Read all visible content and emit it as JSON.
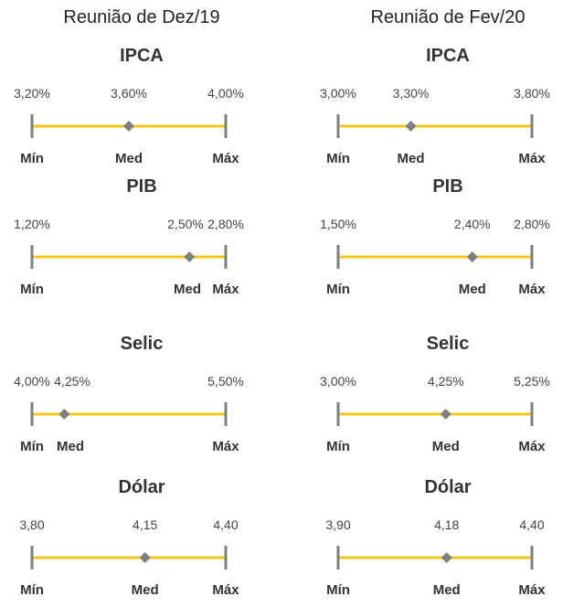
{
  "chart_data": [
    {
      "type": "range",
      "column_title": "Reunião de Dez/19",
      "colors": {
        "line": "#F5C518",
        "tick": "#7f7f7f",
        "marker": "#7f7f7f"
      },
      "end_labels": {
        "min": "Mín",
        "med": "Med",
        "max": "Máx"
      },
      "indicators": [
        {
          "title": "IPCA",
          "min": 3.2,
          "med": 3.6,
          "max": 4.0,
          "min_label": "3,20%",
          "med_label": "3,60%",
          "max_label": "4,00%"
        },
        {
          "title": "PIB",
          "min": 1.2,
          "med": 2.5,
          "max": 2.8,
          "min_label": "1,20%",
          "med_label": "2,50%",
          "max_label": "2,80%"
        },
        {
          "title": "Selic",
          "min": 4.0,
          "med": 4.25,
          "max": 5.5,
          "min_label": "4,00%",
          "med_label": "4,25%",
          "max_label": "5,50%"
        },
        {
          "title": "Dólar",
          "min": 3.8,
          "med": 4.15,
          "max": 4.4,
          "min_label": "3,80",
          "med_label": "4,15",
          "max_label": "4,40"
        }
      ]
    },
    {
      "type": "range",
      "column_title": "Reunião de Fev/20",
      "colors": {
        "line": "#F5C518",
        "tick": "#7f7f7f",
        "marker": "#7f7f7f"
      },
      "end_labels": {
        "min": "Mín",
        "med": "Med",
        "max": "Máx"
      },
      "indicators": [
        {
          "title": "IPCA",
          "min": 3.0,
          "med": 3.3,
          "max": 3.8,
          "min_label": "3,00%",
          "med_label": "3,30%",
          "max_label": "3,80%"
        },
        {
          "title": "PIB",
          "min": 1.5,
          "med": 2.4,
          "max": 2.8,
          "min_label": "1,50%",
          "med_label": "2,40%",
          "max_label": "2,80%"
        },
        {
          "title": "Selic",
          "min": 3.0,
          "med": 4.25,
          "max": 5.25,
          "min_label": "3,00%",
          "med_label": "4,25%",
          "max_label": "5,25%"
        },
        {
          "title": "Dólar",
          "min": 3.9,
          "med": 4.18,
          "max": 4.4,
          "min_label": "3,90",
          "med_label": "4,18",
          "max_label": "4,40"
        }
      ]
    }
  ]
}
